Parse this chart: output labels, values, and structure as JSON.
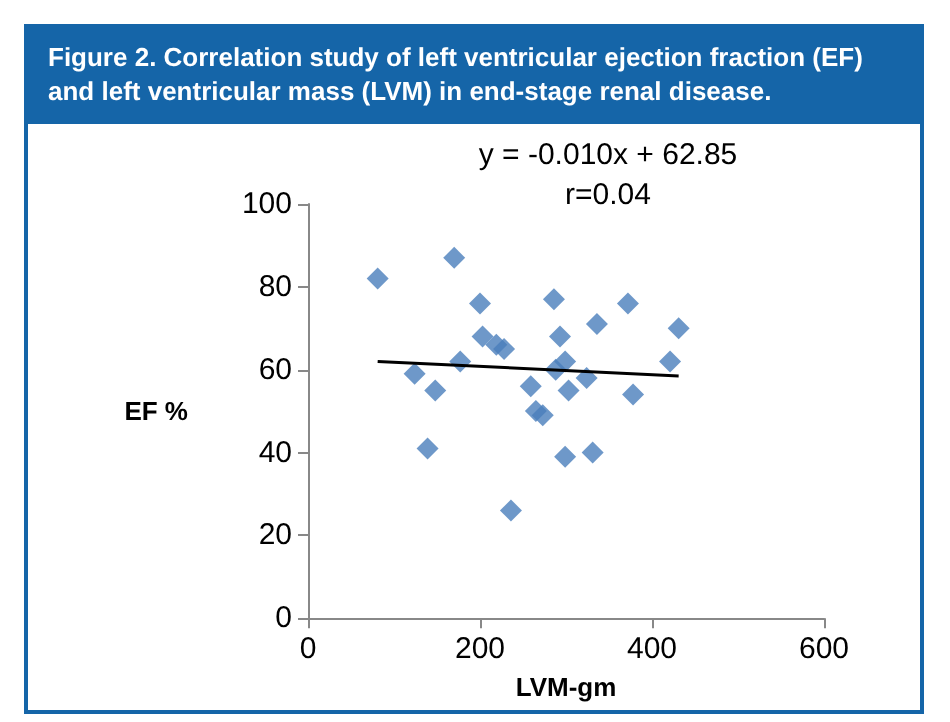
{
  "chart_data": {
    "type": "scatter",
    "title": "Figure 2. Correlation study of left ventricular ejection fraction (EF) and left ventricular mass (LVM) in end-stage renal disease.",
    "xlabel": "LVM-gm",
    "ylabel": "EF %",
    "annotations": [
      "y = -0.010x + 62.85",
      "r=0.04"
    ],
    "series": [
      {
        "color": "#4a7ebb",
        "marker": "diamond",
        "x": [
          81,
          170,
          124,
          148,
          139,
          177,
          200,
          203,
          219,
          228,
          236,
          259,
          265,
          273,
          286,
          293,
          288,
          299,
          303,
          299,
          324,
          336,
          331,
          372,
          378,
          421,
          431
        ],
        "values": [
          82,
          87,
          59,
          55,
          41,
          62,
          76,
          68,
          66,
          65,
          26,
          56,
          50,
          49,
          77,
          68,
          60,
          62,
          55,
          39,
          58,
          71,
          40,
          76,
          54,
          62,
          70
        ]
      },
      {
        "type": "line",
        "color": "#000000",
        "marker": "none",
        "x": [
          81,
          431
        ],
        "values": [
          62.0,
          58.5
        ]
      }
    ],
    "xlim": [
      0,
      600
    ],
    "xticks": [
      0,
      200,
      400,
      600
    ],
    "ylim": [
      0,
      100
    ],
    "yticks": [
      0,
      20,
      40,
      60,
      80,
      100
    ],
    "grid": false
  }
}
